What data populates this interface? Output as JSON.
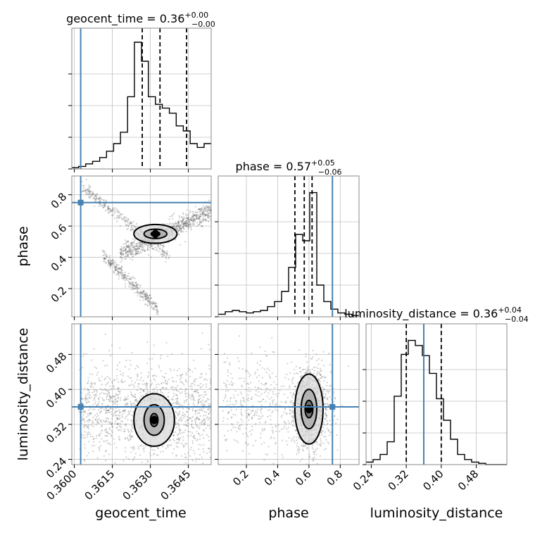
{
  "chart_data": {
    "type": "corner",
    "parameters": [
      "geocent_time",
      "phase",
      "luminosity_distance"
    ],
    "truths": {
      "geocent_time": 0.36025,
      "phase": 0.75,
      "luminosity_distance": 0.36
    },
    "colors": {
      "truth": "#4682b4",
      "hist": "#000000",
      "grid": "#c0c0c0",
      "points": "#555555"
    },
    "grid": true,
    "titles": {
      "geocent_time": {
        "label": "geocent_time",
        "median": "0.36",
        "plus": "+0.00",
        "minus": "−0.00"
      },
      "phase": {
        "label": "phase",
        "median": "0.57",
        "plus": "+0.05",
        "minus": "−0.06"
      },
      "luminosity_distance": {
        "label": "luminosity_distance",
        "median": "0.36",
        "plus": "+0.04",
        "minus": "−0.04"
      }
    },
    "axes": {
      "geocent_time": {
        "range": [
          0.3599,
          0.3654
        ],
        "ticks": [
          0.36,
          0.3615,
          0.363,
          0.3645
        ],
        "tick_labels": [
          "0.3600",
          "0.3615",
          "0.3630",
          "0.3645"
        ]
      },
      "phase": {
        "range": [
          0.02,
          0.92
        ],
        "ticks": [
          0.2,
          0.4,
          0.6,
          0.8
        ],
        "tick_labels": [
          "0.2",
          "0.4",
          "0.6",
          "0.8"
        ]
      },
      "luminosity_distance": {
        "range": [
          0.228,
          0.55
        ],
        "ticks": [
          0.24,
          0.32,
          0.4,
          0.48
        ],
        "tick_labels": [
          "0.24",
          "0.32",
          "0.40",
          "0.48"
        ]
      }
    },
    "marginals": {
      "geocent_time": {
        "bin_edges": [
          0.3599,
          0.36017,
          0.36045,
          0.36072,
          0.361,
          0.36127,
          0.36155,
          0.36182,
          0.3621,
          0.36237,
          0.36265,
          0.36292,
          0.3632,
          0.36347,
          0.36375,
          0.36402,
          0.3643,
          0.36457,
          0.36485,
          0.36512,
          0.3654
        ],
        "counts": [
          0.01,
          0.02,
          0.04,
          0.06,
          0.09,
          0.14,
          0.2,
          0.29,
          0.57,
          1.0,
          0.85,
          0.57,
          0.51,
          0.48,
          0.44,
          0.34,
          0.3,
          0.2,
          0.17,
          0.2
        ],
        "quantiles": [
          0.36268,
          0.36338,
          0.36443
        ]
      },
      "phase": {
        "bin_edges": [
          0.02,
          0.065,
          0.11,
          0.155,
          0.2,
          0.245,
          0.29,
          0.335,
          0.38,
          0.425,
          0.47,
          0.515,
          0.56,
          0.605,
          0.65,
          0.695,
          0.74,
          0.785,
          0.83,
          0.875,
          0.92
        ],
        "counts": [
          0.02,
          0.04,
          0.05,
          0.04,
          0.03,
          0.04,
          0.05,
          0.08,
          0.12,
          0.2,
          0.39,
          0.65,
          0.6,
          0.98,
          0.25,
          0.12,
          0.06,
          0.03,
          0.02,
          0.01
        ],
        "quantiles": [
          0.51,
          0.57,
          0.62
        ]
      },
      "luminosity_distance": {
        "bin_edges": [
          0.228,
          0.2441,
          0.2602,
          0.2763,
          0.2924,
          0.3085,
          0.3246,
          0.3407,
          0.3568,
          0.3729,
          0.389,
          0.4051,
          0.4212,
          0.4373,
          0.4534,
          0.4695,
          0.4856,
          0.5017,
          0.5178,
          0.5339,
          0.55
        ],
        "counts": [
          0.02,
          0.04,
          0.08,
          0.18,
          0.54,
          0.87,
          0.98,
          0.94,
          0.86,
          0.72,
          0.52,
          0.35,
          0.2,
          0.08,
          0.04,
          0.02,
          0.01,
          0.0,
          0.0,
          0.0
        ],
        "quantiles": [
          0.32,
          0.36,
          0.4
        ]
      }
    },
    "joint": [
      {
        "x": "geocent_time",
        "y": "phase",
        "centre": [
          0.3632,
          0.55
        ],
        "levels": [
          [
            0.00017,
            0.015
          ],
          [
            0.00045,
            0.03
          ],
          [
            0.00085,
            0.06
          ]
        ]
      },
      {
        "x": "geocent_time",
        "y": "luminosity_distance",
        "centre": [
          0.36315,
          0.33
        ],
        "levels": [
          [
            0.00015,
            0.015
          ],
          [
            0.0004,
            0.035
          ],
          [
            0.0008,
            0.06
          ]
        ]
      },
      {
        "x": "phase",
        "y": "luminosity_distance",
        "centre": [
          0.6,
          0.355
        ],
        "levels": [
          [
            0.025,
            0.02
          ],
          [
            0.05,
            0.045
          ],
          [
            0.09,
            0.08
          ]
        ]
      }
    ]
  }
}
